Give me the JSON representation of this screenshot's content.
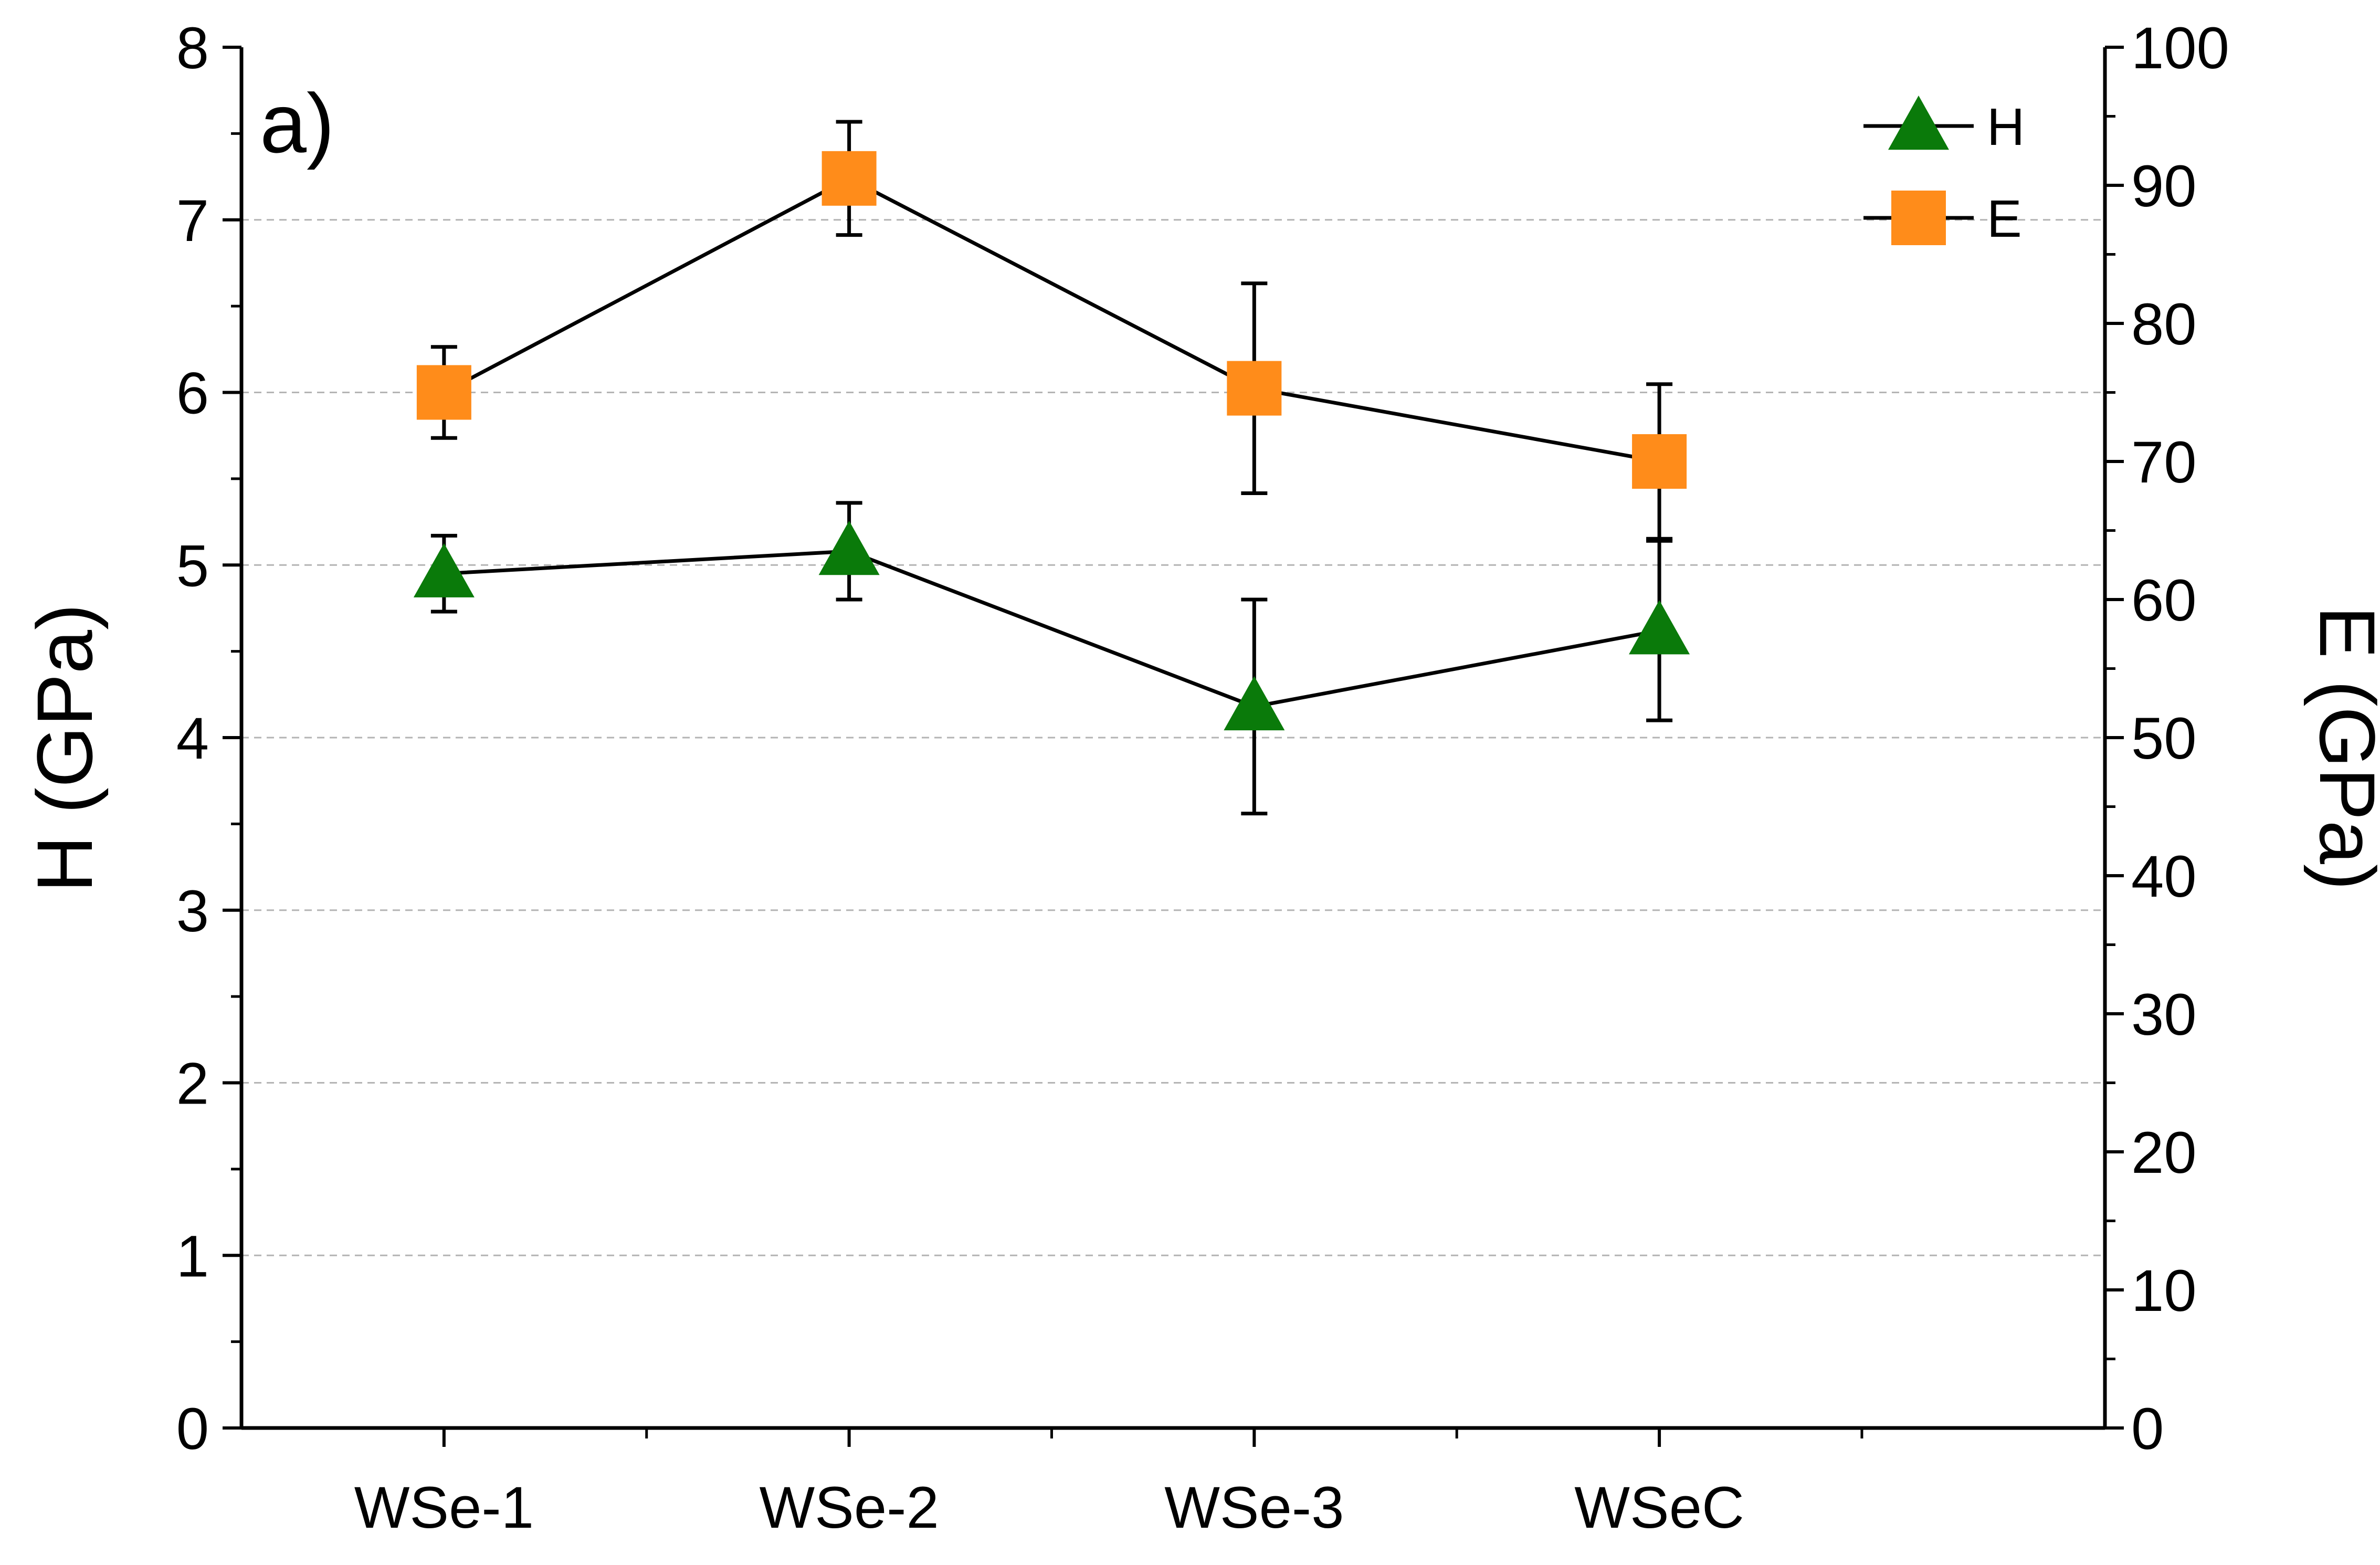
{
  "chart_data": {
    "type": "line",
    "panel_label": "a)",
    "categories": [
      "WSe-1",
      "WSe-2",
      "WSe-3",
      "WSeC"
    ],
    "y_left": {
      "label": "H (GPa)",
      "range": [
        0,
        8
      ],
      "ticks": [
        "0",
        "1",
        "2",
        "3",
        "4",
        "5",
        "6",
        "7",
        "8"
      ]
    },
    "y_right": {
      "label": "E (GPa)",
      "range": [
        0,
        100
      ],
      "ticks": [
        "0",
        "10",
        "20",
        "30",
        "40",
        "50",
        "60",
        "70",
        "80",
        "90",
        "100"
      ]
    },
    "grid": "horizontal dashed at major ticks",
    "legend": {
      "position": "top-right"
    },
    "series": [
      {
        "name": "H",
        "axis": "left",
        "marker": "triangle",
        "color": "#0a7a0a",
        "values": [
          4.95,
          5.08,
          4.18,
          4.62
        ],
        "errors": [
          0.22,
          0.28,
          0.62,
          0.52
        ]
      },
      {
        "name": "E",
        "axis": "right",
        "marker": "square",
        "color": "#ff8c1a",
        "values": [
          75.0,
          90.5,
          75.3,
          70.0
        ],
        "errors": [
          3.3,
          4.1,
          7.6,
          5.6
        ]
      }
    ]
  }
}
